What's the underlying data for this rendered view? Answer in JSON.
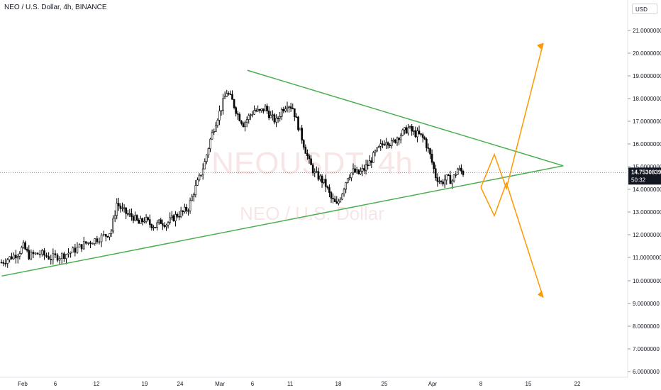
{
  "header": {
    "title": "NEO / U.S. Dollar, 4h, BINANCE",
    "currency": "USD"
  },
  "watermark": {
    "symbol": "NEOUSDT, 4h",
    "name": "NEO / U.S. Dollar"
  },
  "colors": {
    "up": "#26a69a",
    "candle": "#000000",
    "trend": "#4caf50",
    "projection": "#ff9800",
    "price_label_bg": "#131722"
  },
  "chart_data": {
    "type": "candlestick",
    "price_axis": {
      "ticks": [
        "21.0000000",
        "20.0000000",
        "19.0000000",
        "18.0000000",
        "17.0000000",
        "16.0000000",
        "15.0000000",
        "14.0000000",
        "13.0000000",
        "12.0000000",
        "11.0000000",
        "10.0000000",
        "9.0000000",
        "8.0000000",
        "7.0000000",
        "6.0000000"
      ],
      "range": [
        5.8,
        21.8
      ]
    },
    "time_axis": {
      "ticks": [
        "Feb",
        "6",
        "12",
        "19",
        "24",
        "Mar",
        "6",
        "11",
        "18",
        "25",
        "Apr",
        "8",
        "15",
        "22"
      ]
    },
    "last_price": {
      "value": "14.7530839",
      "countdown": "50:32"
    },
    "price_path": [
      [
        0,
        10.8
      ],
      [
        3,
        11.0
      ],
      [
        6,
        11.2
      ],
      [
        8,
        11.5
      ],
      [
        10,
        11.1
      ],
      [
        14,
        11.2
      ],
      [
        18,
        11.0
      ],
      [
        22,
        11.1
      ],
      [
        26,
        11.3
      ],
      [
        30,
        11.6
      ],
      [
        34,
        11.8
      ],
      [
        38,
        12.0
      ],
      [
        40,
        12.2
      ],
      [
        42,
        13.4
      ],
      [
        44,
        13.1
      ],
      [
        46,
        12.9
      ],
      [
        48,
        12.8
      ],
      [
        50,
        12.5
      ],
      [
        52,
        12.7
      ],
      [
        54,
        12.5
      ],
      [
        56,
        12.4
      ],
      [
        58,
        12.6
      ],
      [
        60,
        12.5
      ],
      [
        62,
        12.7
      ],
      [
        64,
        12.9
      ],
      [
        66,
        13.0
      ],
      [
        68,
        13.2
      ],
      [
        70,
        13.9
      ],
      [
        72,
        14.5
      ],
      [
        74,
        15.2
      ],
      [
        76,
        16.2
      ],
      [
        78,
        17.0
      ],
      [
        80,
        17.6
      ],
      [
        82,
        18.3
      ],
      [
        84,
        17.9
      ],
      [
        86,
        17.3
      ],
      [
        88,
        16.9
      ],
      [
        90,
        17.2
      ],
      [
        92,
        17.5
      ],
      [
        94,
        17.4
      ],
      [
        96,
        17.6
      ],
      [
        98,
        17.2
      ],
      [
        100,
        17.0
      ],
      [
        102,
        17.5
      ],
      [
        104,
        17.8
      ],
      [
        106,
        17.6
      ],
      [
        108,
        16.8
      ],
      [
        110,
        16.0
      ],
      [
        112,
        15.2
      ],
      [
        114,
        14.7
      ],
      [
        116,
        14.5
      ],
      [
        118,
        14.2
      ],
      [
        120,
        13.6
      ],
      [
        122,
        13.3
      ],
      [
        124,
        13.9
      ],
      [
        126,
        14.6
      ],
      [
        128,
        14.8
      ],
      [
        130,
        14.7
      ],
      [
        132,
        14.9
      ],
      [
        134,
        15.2
      ],
      [
        136,
        15.6
      ],
      [
        138,
        15.9
      ],
      [
        140,
        16.2
      ],
      [
        142,
        16.0
      ],
      [
        144,
        16.3
      ],
      [
        146,
        16.5
      ],
      [
        148,
        16.7
      ],
      [
        150,
        16.5
      ],
      [
        152,
        16.4
      ],
      [
        154,
        16.2
      ],
      [
        156,
        15.5
      ],
      [
        158,
        14.6
      ],
      [
        160,
        14.3
      ],
      [
        162,
        14.5
      ],
      [
        164,
        14.4
      ],
      [
        166,
        14.9
      ],
      [
        168,
        14.75
      ]
    ],
    "triangle": {
      "upper_line": [
        [
          "Mar 5",
          19.25
        ],
        [
          "Apr 20",
          15.05
        ]
      ],
      "lower_line": [
        [
          "Jan 29",
          10.2
        ],
        [
          "Apr 20",
          15.05
        ]
      ]
    },
    "projections": {
      "bullish": [
        14.1,
        15.55,
        14.05,
        20.45
      ],
      "bearish": [
        14.1,
        12.85,
        14.3,
        9.25
      ]
    }
  }
}
